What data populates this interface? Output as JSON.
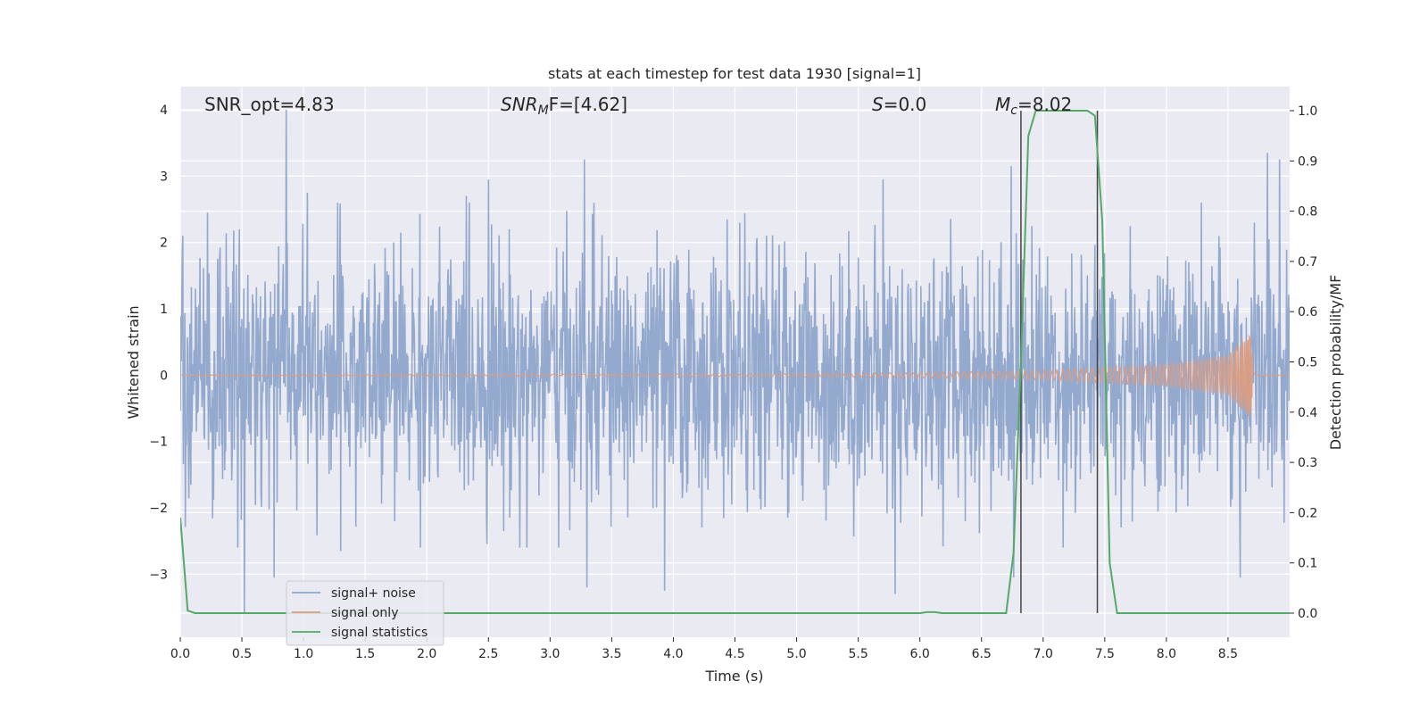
{
  "chart_data": {
    "type": "line",
    "title": "stats at each timestep for test data 1930 [signal=1]",
    "xlabel": "Time (s)",
    "ylabel_left": "Whitened strain",
    "ylabel_right": "Detection probability/MF",
    "xlim": [
      0.0,
      9.0
    ],
    "ylim_left": [
      -3.95,
      4.35
    ],
    "ylim_right": [
      -0.048,
      1.048
    ],
    "grid": true,
    "legend_position": "lower-left",
    "x_ticks": [
      "0.0",
      "0.5",
      "1.0",
      "1.5",
      "2.0",
      "2.5",
      "3.0",
      "3.5",
      "4.0",
      "4.5",
      "5.0",
      "5.5",
      "6.0",
      "6.5",
      "7.0",
      "7.5",
      "8.0",
      "8.5"
    ],
    "y_left_ticks": [
      "−3",
      "−2",
      "−1",
      "0",
      "1",
      "2",
      "3",
      "4"
    ],
    "y_right_ticks": [
      "0.0",
      "0.1",
      "0.2",
      "0.3",
      "0.4",
      "0.5",
      "0.6",
      "0.7",
      "0.8",
      "0.9",
      "1.0"
    ],
    "annotations": {
      "snr_opt": "SNR_opt=4.83",
      "snr_mf_main": "SNR",
      "snr_mf_sub": "M",
      "snr_mf_rest": "F=[4.62]",
      "s_main": "S",
      "s_rest": "=0.0",
      "mc_main": "M",
      "mc_sub": "c",
      "mc_rest": "=8.02"
    },
    "vertical_lines_x": [
      6.82,
      7.44
    ],
    "series": [
      {
        "name": "signal+ noise",
        "color": "#8fa5cb",
        "description_envelope": "noise-like strain, typical amplitude ~1.5, max 4.0",
        "peaks": [
          {
            "x": 0.02,
            "y": 2.1
          },
          {
            "x": 0.22,
            "y": 2.45
          },
          {
            "x": 0.48,
            "y": 2.2
          },
          {
            "x": 0.86,
            "y": 4.0
          },
          {
            "x": 1.03,
            "y": 2.75
          },
          {
            "x": 2.32,
            "y": 2.7
          },
          {
            "x": 2.5,
            "y": 2.95
          },
          {
            "x": 3.28,
            "y": 3.25
          },
          {
            "x": 5.7,
            "y": 2.95
          },
          {
            "x": 6.74,
            "y": 3.15
          },
          {
            "x": 8.82,
            "y": 3.35
          },
          {
            "x": 8.92,
            "y": 3.25
          }
        ],
        "troughs": [
          {
            "x": 0.52,
            "y": -3.6
          },
          {
            "x": 0.76,
            "y": -3.05
          },
          {
            "x": 1.3,
            "y": -2.65
          },
          {
            "x": 3.3,
            "y": -3.2
          },
          {
            "x": 3.93,
            "y": -3.25
          },
          {
            "x": 5.8,
            "y": -3.3
          },
          {
            "x": 6.76,
            "y": -3.05
          },
          {
            "x": 8.6,
            "y": -3.05
          }
        ]
      },
      {
        "name": "signal only",
        "color": "#dd9b80",
        "description_envelope": "chirp amplitude growing from ~0 to 0.65 at merger near t=8.68 s",
        "amplitude_points": [
          {
            "x": 0.0,
            "y": 0.0
          },
          {
            "x": 4.8,
            "y": 0.02
          },
          {
            "x": 6.0,
            "y": 0.04
          },
          {
            "x": 7.0,
            "y": 0.07
          },
          {
            "x": 8.0,
            "y": 0.16
          },
          {
            "x": 8.5,
            "y": 0.3
          },
          {
            "x": 8.68,
            "y": 0.65
          },
          {
            "x": 8.72,
            "y": 0.0
          }
        ]
      },
      {
        "name": "signal statistics",
        "color": "#55a868",
        "x": [
          0.0,
          0.06,
          0.12,
          0.2,
          6.0,
          6.06,
          6.12,
          6.18,
          6.7,
          6.76,
          6.82,
          6.88,
          6.94,
          7.36,
          7.42,
          7.48,
          7.54,
          7.6,
          9.0
        ],
        "y": [
          0.19,
          0.005,
          0.0,
          0.0,
          0.0,
          0.002,
          0.002,
          0.0,
          0.0,
          0.12,
          0.5,
          0.95,
          1.0,
          1.0,
          0.99,
          0.78,
          0.1,
          0.0,
          0.0
        ]
      }
    ]
  }
}
